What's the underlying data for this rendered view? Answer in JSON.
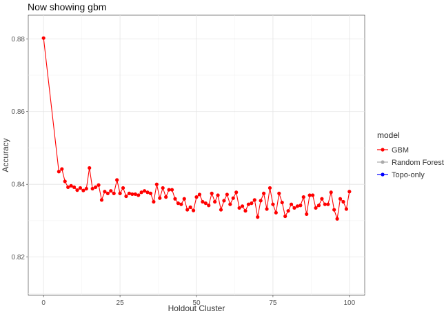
{
  "chart_data": {
    "type": "line",
    "title": "Now showing gbm",
    "xlabel": "Holdout Cluster",
    "ylabel": "Accuracy",
    "xlim": [
      -5,
      105
    ],
    "ylim": [
      0.8095,
      0.8865
    ],
    "x_ticks": [
      0,
      25,
      50,
      75,
      100
    ],
    "x_tick_labels": [
      "0",
      "25",
      "50",
      "75",
      "100"
    ],
    "y_ticks": [
      0.82,
      0.84,
      0.86,
      0.88
    ],
    "y_tick_labels": [
      "0.82",
      "0.84",
      "0.86",
      "0.88"
    ],
    "grid": true,
    "legend": {
      "title": "model",
      "position": "right",
      "entries": [
        {
          "label": "GBM",
          "color": "#ff0000"
        },
        {
          "label": "Random Forest",
          "color": "#aaaaaa"
        },
        {
          "label": "Topo-only",
          "color": "#0000ff"
        }
      ]
    },
    "series": [
      {
        "name": "GBM",
        "color": "#ff0000",
        "x": [
          0,
          5,
          6,
          7,
          8,
          9,
          10,
          11,
          12,
          13,
          14,
          15,
          16,
          17,
          18,
          19,
          20,
          21,
          22,
          23,
          24,
          25,
          26,
          27,
          28,
          29,
          30,
          31,
          32,
          33,
          34,
          35,
          36,
          37,
          38,
          39,
          40,
          41,
          42,
          43,
          44,
          45,
          46,
          47,
          48,
          49,
          50,
          51,
          52,
          53,
          54,
          55,
          56,
          57,
          58,
          59,
          60,
          61,
          62,
          63,
          64,
          65,
          66,
          67,
          68,
          69,
          70,
          71,
          72,
          73,
          74,
          75,
          76,
          77,
          78,
          79,
          80,
          81,
          82,
          83,
          84,
          85,
          86,
          87,
          88,
          89,
          90,
          91,
          92,
          93,
          94,
          95,
          96,
          97,
          98,
          99,
          100
        ],
        "y": [
          0.8802,
          0.8435,
          0.8442,
          0.8408,
          0.8392,
          0.8396,
          0.8392,
          0.8384,
          0.839,
          0.8383,
          0.8388,
          0.8445,
          0.8388,
          0.8392,
          0.8398,
          0.8357,
          0.838,
          0.8375,
          0.8382,
          0.8375,
          0.8412,
          0.8375,
          0.839,
          0.8367,
          0.8375,
          0.8373,
          0.8373,
          0.837,
          0.8378,
          0.8382,
          0.8378,
          0.8375,
          0.8352,
          0.84,
          0.8362,
          0.839,
          0.8365,
          0.8385,
          0.8385,
          0.836,
          0.8348,
          0.8345,
          0.836,
          0.833,
          0.8337,
          0.8328,
          0.8365,
          0.8372,
          0.8352,
          0.8348,
          0.8342,
          0.8375,
          0.8352,
          0.837,
          0.833,
          0.8355,
          0.8372,
          0.8345,
          0.8362,
          0.8378,
          0.8335,
          0.834,
          0.8327,
          0.8345,
          0.8348,
          0.8357,
          0.831,
          0.8355,
          0.8375,
          0.8332,
          0.839,
          0.8345,
          0.8322,
          0.8375,
          0.835,
          0.8312,
          0.8327,
          0.8345,
          0.8335,
          0.834,
          0.8342,
          0.8365,
          0.8318,
          0.837,
          0.837,
          0.8335,
          0.8342,
          0.836,
          0.8345,
          0.8345,
          0.8378,
          0.833,
          0.8305,
          0.836,
          0.8352,
          0.8332,
          0.838
        ]
      }
    ]
  }
}
